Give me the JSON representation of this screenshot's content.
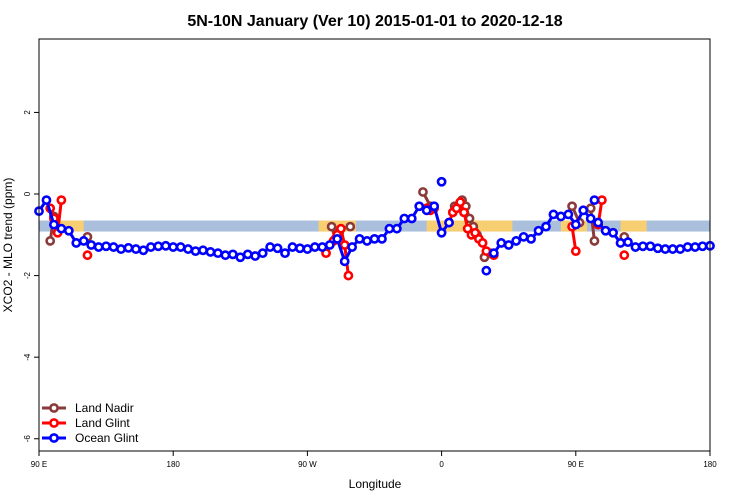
{
  "chart_data": {
    "type": "line",
    "title": "5N-10N January (Ver 10)   2015-01-01 to 2020-12-18",
    "xlabel": "Longitude",
    "ylabel": "XCO2 - MLO trend (ppm)",
    "xlim": [
      -90,
      270
    ],
    "ylim": [
      -6.3,
      3.8
    ],
    "x_ticks": [
      {
        "value": -90,
        "label": "90 E"
      },
      {
        "value": -18,
        "label": "180"
      },
      {
        "value": 54,
        "label": "90 W"
      },
      {
        "value": 126,
        "label": "0"
      },
      {
        "value": 198,
        "label": "90 E"
      },
      {
        "value": 270,
        "label": "180"
      }
    ],
    "y_ticks": [
      {
        "value": 2,
        "label": "2"
      },
      {
        "value": 0,
        "label": "0"
      },
      {
        "value": -2,
        "label": "-2"
      },
      {
        "value": -4,
        "label": "-4"
      },
      {
        "value": -6,
        "label": "-6"
      }
    ],
    "band": {
      "y_low": -0.92,
      "y_high": -0.65,
      "color": "#a9bfdc"
    },
    "land_band_segments": [
      [
        -80,
        -66
      ],
      [
        60,
        80
      ],
      [
        118,
        164
      ],
      [
        190,
        204
      ],
      [
        222,
        236
      ]
    ],
    "land_band_color": "#f7cf72",
    "legend_position": "bottom-left",
    "series": [
      {
        "name": "Land Nadir",
        "color": "#8b3a3a",
        "segments": [
          [
            [
              -84,
              -1.15
            ],
            [
              -82,
              -0.55
            ]
          ],
          [
            [
              -64,
              -1.05
            ]
          ],
          [
            [
              67,
              -0.8
            ],
            [
              69,
              -1.1
            ],
            [
              71,
              -0.95
            ]
          ],
          [
            [
              77,
              -0.8
            ]
          ],
          [
            [
              116,
              0.05
            ],
            [
              120,
              -0.3
            ]
          ],
          [
            [
              133,
              -0.3
            ],
            [
              135,
              -0.3
            ],
            [
              137,
              -0.15
            ],
            [
              139,
              -0.3
            ],
            [
              141,
              -0.6
            ],
            [
              143,
              -0.8
            ],
            [
              145,
              -1.0
            ]
          ],
          [
            [
              149,
              -1.55
            ],
            [
              152,
              -1.45
            ]
          ],
          [
            [
              196,
              -0.3
            ],
            [
              200,
              -0.7
            ]
          ],
          [
            [
              206,
              -0.35
            ],
            [
              208,
              -1.15
            ]
          ],
          [
            [
              224,
              -1.05
            ]
          ]
        ]
      },
      {
        "name": "Land Glint",
        "color": "#ff0000",
        "segments": [
          [
            [
              -84,
              -0.35
            ],
            [
              -82,
              -0.6
            ],
            [
              -80,
              -0.95
            ],
            [
              -78,
              -0.15
            ]
          ],
          [
            [
              -64,
              -1.5
            ]
          ],
          [
            [
              64,
              -1.45
            ]
          ],
          [
            [
              68,
              -1.15
            ],
            [
              70,
              -1.0
            ],
            [
              72,
              -0.85
            ],
            [
              74,
              -1.25
            ],
            [
              76,
              -2.0
            ]
          ],
          [
            [
              118,
              -0.35
            ],
            [
              120,
              -0.4
            ],
            [
              122,
              -0.35
            ]
          ],
          [
            [
              130,
              -0.7
            ],
            [
              132,
              -0.45
            ],
            [
              134,
              -0.35
            ],
            [
              136,
              -0.2
            ],
            [
              138,
              -0.45
            ],
            [
              140,
              -0.85
            ],
            [
              142,
              -1.0
            ],
            [
              144,
              -0.95
            ],
            [
              146,
              -1.1
            ],
            [
              148,
              -1.2
            ],
            [
              150,
              -1.4
            ],
            [
              154,
              -1.5
            ]
          ],
          [
            [
              196,
              -0.8
            ],
            [
              198,
              -1.4
            ]
          ],
          [
            [
              210,
              -0.75
            ],
            [
              212,
              -0.15
            ]
          ],
          [
            [
              224,
              -1.5
            ]
          ]
        ]
      },
      {
        "name": "Ocean Glint",
        "color": "#0000ff",
        "segments": [
          [
            [
              -90,
              -0.42
            ],
            [
              -86,
              -0.15
            ],
            [
              -82,
              -0.75
            ],
            [
              -78,
              -0.85
            ],
            [
              -74,
              -0.9
            ],
            [
              -70,
              -1.2
            ],
            [
              -66,
              -1.15
            ],
            [
              -62,
              -1.25
            ],
            [
              -58,
              -1.3
            ],
            [
              -54,
              -1.28
            ],
            [
              -50,
              -1.3
            ],
            [
              -46,
              -1.35
            ],
            [
              -42,
              -1.32
            ],
            [
              -38,
              -1.35
            ],
            [
              -34,
              -1.38
            ],
            [
              -30,
              -1.3
            ],
            [
              -26,
              -1.28
            ],
            [
              -22,
              -1.27
            ],
            [
              -18,
              -1.3
            ],
            [
              -14,
              -1.3
            ],
            [
              -10,
              -1.35
            ],
            [
              -6,
              -1.4
            ],
            [
              -2,
              -1.38
            ],
            [
              2,
              -1.42
            ],
            [
              6,
              -1.45
            ],
            [
              10,
              -1.5
            ],
            [
              14,
              -1.48
            ],
            [
              18,
              -1.55
            ],
            [
              22,
              -1.48
            ],
            [
              26,
              -1.52
            ],
            [
              30,
              -1.45
            ],
            [
              34,
              -1.3
            ],
            [
              38,
              -1.33
            ],
            [
              42,
              -1.45
            ],
            [
              46,
              -1.3
            ],
            [
              50,
              -1.33
            ],
            [
              54,
              -1.35
            ],
            [
              58,
              -1.3
            ],
            [
              62,
              -1.3
            ],
            [
              66,
              -1.25
            ],
            [
              70,
              -1.1
            ],
            [
              74,
              -1.65
            ],
            [
              78,
              -1.3
            ],
            [
              82,
              -1.1
            ],
            [
              86,
              -1.15
            ],
            [
              90,
              -1.1
            ],
            [
              94,
              -1.1
            ],
            [
              98,
              -0.85
            ],
            [
              102,
              -0.85
            ],
            [
              106,
              -0.6
            ],
            [
              110,
              -0.6
            ],
            [
              114,
              -0.3
            ],
            [
              118,
              -0.4
            ],
            [
              122,
              -0.3
            ],
            [
              126,
              -0.95
            ],
            [
              130,
              -0.7
            ]
          ],
          [
            [
              126,
              0.3
            ]
          ],
          [
            [
              150,
              -1.88
            ]
          ],
          [
            [
              154,
              -1.45
            ],
            [
              158,
              -1.2
            ],
            [
              162,
              -1.25
            ],
            [
              166,
              -1.15
            ],
            [
              170,
              -1.05
            ],
            [
              174,
              -1.1
            ],
            [
              178,
              -0.9
            ],
            [
              182,
              -0.8
            ],
            [
              186,
              -0.5
            ],
            [
              190,
              -0.55
            ],
            [
              194,
              -0.5
            ],
            [
              198,
              -0.75
            ],
            [
              202,
              -0.4
            ],
            [
              206,
              -0.6
            ],
            [
              210,
              -0.7
            ],
            [
              214,
              -0.9
            ],
            [
              218,
              -0.95
            ],
            [
              222,
              -1.2
            ],
            [
              226,
              -1.18
            ],
            [
              230,
              -1.3
            ],
            [
              234,
              -1.28
            ],
            [
              238,
              -1.28
            ],
            [
              242,
              -1.33
            ],
            [
              246,
              -1.35
            ],
            [
              250,
              -1.35
            ],
            [
              254,
              -1.35
            ],
            [
              258,
              -1.3
            ],
            [
              262,
              -1.3
            ],
            [
              266,
              -1.28
            ],
            [
              270,
              -1.27
            ]
          ],
          [
            [
              208,
              -0.15
            ]
          ]
        ]
      }
    ]
  }
}
